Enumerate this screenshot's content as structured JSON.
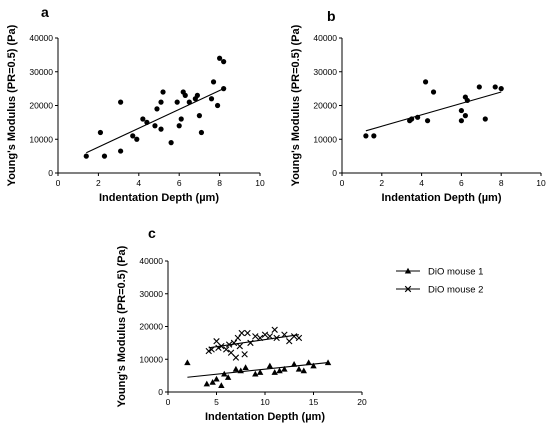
{
  "chart_data": [
    {
      "panel": "a",
      "type": "scatter",
      "xlabel": "Indentation Depth (µm)",
      "ylabel": "Young's Modulus (PR=0.5) (Pa)",
      "xlim": [
        0,
        10
      ],
      "ylim": [
        0,
        40000
      ],
      "xticks": [
        0,
        2,
        4,
        6,
        8,
        10
      ],
      "yticks": [
        0,
        10000,
        20000,
        30000,
        40000
      ],
      "series": [
        {
          "marker": "circle",
          "points": [
            [
              1.4,
              5000
            ],
            [
              2.1,
              12000
            ],
            [
              2.3,
              5000
            ],
            [
              3.1,
              6500
            ],
            [
              3.1,
              21000
            ],
            [
              3.7,
              11000
            ],
            [
              3.9,
              10000
            ],
            [
              4.2,
              16000
            ],
            [
              4.4,
              15000
            ],
            [
              4.8,
              14000
            ],
            [
              4.9,
              19000
            ],
            [
              5.1,
              13000
            ],
            [
              5.1,
              21000
            ],
            [
              5.2,
              24000
            ],
            [
              5.6,
              9000
            ],
            [
              5.9,
              21000
            ],
            [
              6.0,
              14000
            ],
            [
              6.1,
              16000
            ],
            [
              6.2,
              24000
            ],
            [
              6.3,
              23000
            ],
            [
              6.5,
              21000
            ],
            [
              6.8,
              22000
            ],
            [
              6.9,
              23000
            ],
            [
              7.0,
              17000
            ],
            [
              7.1,
              12000
            ],
            [
              7.6,
              22000
            ],
            [
              7.7,
              27000
            ],
            [
              7.9,
              20000
            ],
            [
              8.0,
              34000
            ],
            [
              8.2,
              25000
            ],
            [
              8.2,
              33000
            ]
          ],
          "fit": [
            [
              1.4,
              6000
            ],
            [
              8.2,
              25000
            ]
          ]
        }
      ]
    },
    {
      "panel": "b",
      "type": "scatter",
      "xlabel": "Indentation Depth (µm)",
      "ylabel": "Young's Modulus (PR=0.5) (Pa)",
      "xlim": [
        0,
        10
      ],
      "ylim": [
        0,
        40000
      ],
      "xticks": [
        0,
        2,
        4,
        6,
        8,
        10
      ],
      "yticks": [
        0,
        10000,
        20000,
        30000,
        40000
      ],
      "series": [
        {
          "marker": "circle",
          "points": [
            [
              1.2,
              11000
            ],
            [
              1.6,
              11000
            ],
            [
              3.4,
              15500
            ],
            [
              3.5,
              16000
            ],
            [
              3.8,
              16500
            ],
            [
              4.2,
              27000
            ],
            [
              4.3,
              15500
            ],
            [
              4.6,
              24000
            ],
            [
              6.0,
              15500
            ],
            [
              6.0,
              18500
            ],
            [
              6.2,
              17000
            ],
            [
              6.2,
              22500
            ],
            [
              6.3,
              21500
            ],
            [
              6.9,
              25500
            ],
            [
              7.2,
              16000
            ],
            [
              7.7,
              25500
            ],
            [
              8.0,
              25000
            ]
          ],
          "fit": [
            [
              1.2,
              12500
            ],
            [
              8.0,
              24000
            ]
          ]
        }
      ]
    },
    {
      "panel": "c",
      "type": "scatter",
      "xlabel": "Indentation Depth (µm)",
      "ylabel": "Young's Modulus (PR=0.5) (Pa)",
      "xlim": [
        0,
        20
      ],
      "ylim": [
        0,
        40000
      ],
      "xticks": [
        0,
        5,
        10,
        15,
        20
      ],
      "yticks": [
        0,
        10000,
        20000,
        30000,
        40000
      ],
      "legend_position": "right",
      "series": [
        {
          "name": "DiO mouse 1",
          "marker": "triangle",
          "points": [
            [
              2.0,
              9000
            ],
            [
              4.0,
              2500
            ],
            [
              4.6,
              3000
            ],
            [
              5.0,
              4000
            ],
            [
              5.5,
              2000
            ],
            [
              5.8,
              5500
            ],
            [
              6.2,
              4500
            ],
            [
              7.0,
              7000
            ],
            [
              7.5,
              6500
            ],
            [
              8.0,
              7500
            ],
            [
              9.0,
              5500
            ],
            [
              9.5,
              6000
            ],
            [
              10.5,
              8000
            ],
            [
              11.0,
              6000
            ],
            [
              11.5,
              6500
            ],
            [
              12.0,
              7000
            ],
            [
              13.0,
              8500
            ],
            [
              13.5,
              7000
            ],
            [
              14.0,
              6500
            ],
            [
              14.5,
              9000
            ],
            [
              15.0,
              8000
            ],
            [
              16.5,
              9000
            ]
          ],
          "fit": [
            [
              2.0,
              4500
            ],
            [
              16.5,
              9000
            ]
          ]
        },
        {
          "name": "DiO mouse 2",
          "marker": "x",
          "points": [
            [
              4.2,
              12500
            ],
            [
              4.5,
              13000
            ],
            [
              5.0,
              15500
            ],
            [
              5.2,
              13500
            ],
            [
              5.5,
              14000
            ],
            [
              6.0,
              13000
            ],
            [
              6.3,
              14500
            ],
            [
              6.5,
              12000
            ],
            [
              6.8,
              15000
            ],
            [
              7.0,
              10500
            ],
            [
              7.2,
              16500
            ],
            [
              7.4,
              14000
            ],
            [
              7.6,
              18000
            ],
            [
              7.9,
              11500
            ],
            [
              8.2,
              18000
            ],
            [
              8.5,
              15000
            ],
            [
              9.0,
              17000
            ],
            [
              9.5,
              16500
            ],
            [
              10.0,
              17500
            ],
            [
              10.5,
              17000
            ],
            [
              11.0,
              19000
            ],
            [
              11.2,
              16500
            ],
            [
              12.0,
              17500
            ],
            [
              12.5,
              15500
            ],
            [
              13.0,
              17000
            ],
            [
              13.5,
              16500
            ]
          ],
          "fit": [
            [
              4.2,
              13500
            ],
            [
              13.5,
              17500
            ]
          ]
        }
      ]
    }
  ]
}
